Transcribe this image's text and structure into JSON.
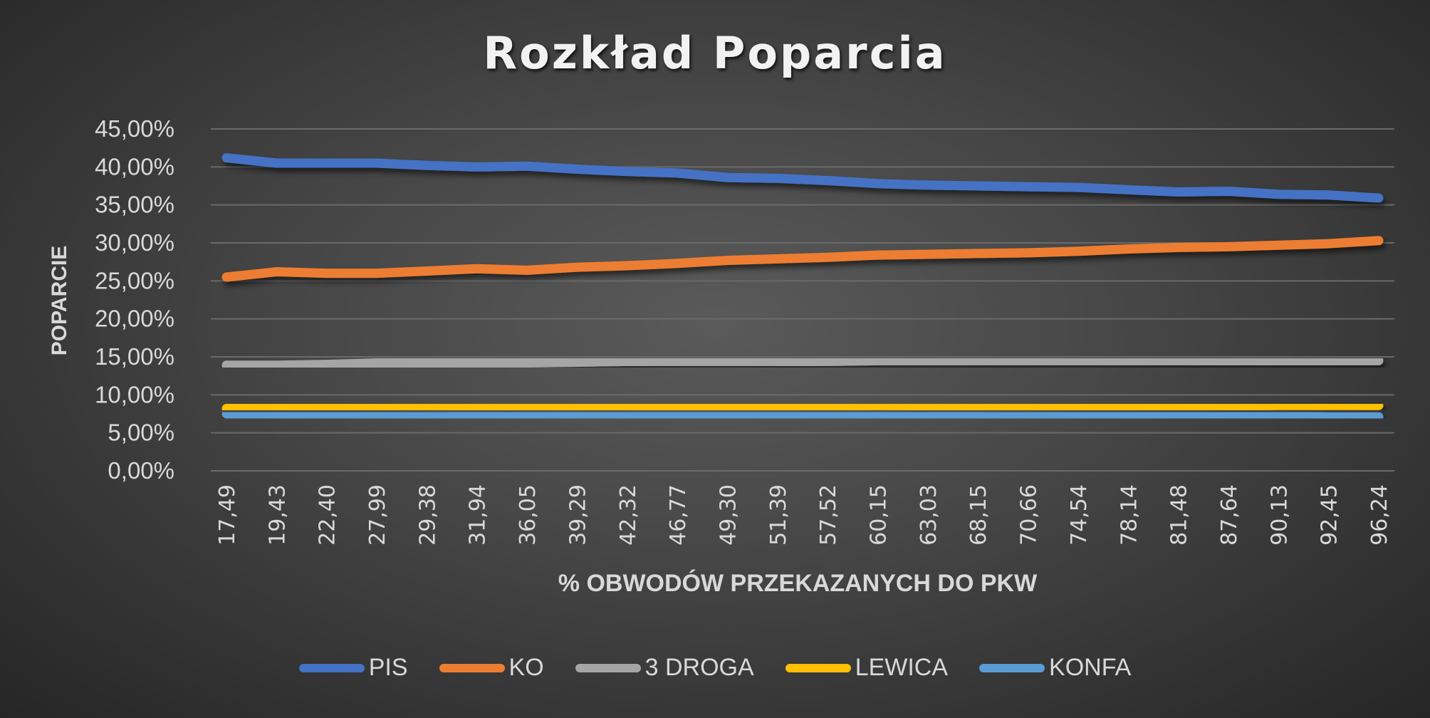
{
  "chart_data": {
    "type": "line",
    "title": "Rozkład Poparcia",
    "xlabel": "% OBWODÓW PRZEKAZANYCH DO PKW",
    "ylabel": "POPARCIE",
    "ylim": [
      0,
      45
    ],
    "yticks": [
      "0,00%",
      "5,00%",
      "10,00%",
      "15,00%",
      "20,00%",
      "25,00%",
      "30,00%",
      "35,00%",
      "40,00%",
      "45,00%"
    ],
    "grid": true,
    "legend_position": "bottom",
    "categories": [
      "17,49",
      "19,43",
      "22,40",
      "27,99",
      "29,38",
      "31,94",
      "36,05",
      "39,29",
      "42,32",
      "46,77",
      "49,30",
      "51,39",
      "57,52",
      "60,15",
      "63,03",
      "68,15",
      "70,66",
      "74,54",
      "78,14",
      "81,48",
      "87,64",
      "90,13",
      "92,45",
      "96,24"
    ],
    "series": [
      {
        "name": "PIS",
        "color": "#4472c4",
        "values": [
          41.2,
          40.5,
          40.5,
          40.5,
          40.2,
          40.0,
          40.1,
          39.7,
          39.4,
          39.2,
          38.6,
          38.5,
          38.2,
          37.8,
          37.6,
          37.5,
          37.4,
          37.3,
          37.0,
          36.7,
          36.8,
          36.4,
          36.3,
          35.9
        ]
      },
      {
        "name": "KO",
        "color": "#ed7d31",
        "values": [
          25.5,
          26.2,
          26.0,
          26.0,
          26.3,
          26.6,
          26.4,
          26.8,
          27.0,
          27.3,
          27.7,
          27.9,
          28.1,
          28.4,
          28.5,
          28.6,
          28.7,
          28.9,
          29.2,
          29.4,
          29.5,
          29.7,
          29.9,
          30.3
        ]
      },
      {
        "name": "3 DROGA",
        "color": "#a5a5a5",
        "values": [
          13.9,
          13.9,
          14.0,
          14.2,
          14.2,
          14.2,
          14.2,
          14.3,
          14.4,
          14.4,
          14.4,
          14.4,
          14.4,
          14.5,
          14.5,
          14.5,
          14.5,
          14.5,
          14.5,
          14.5,
          14.5,
          14.5,
          14.5,
          14.5
        ]
      },
      {
        "name": "LEWICA",
        "color": "#ffc000",
        "values": [
          8.2,
          8.3,
          8.3,
          8.4,
          8.4,
          8.4,
          8.4,
          8.4,
          8.4,
          8.5,
          8.5,
          8.5,
          8.5,
          8.6,
          8.5,
          8.5,
          8.5,
          8.5,
          8.5,
          8.5,
          8.5,
          8.6,
          8.6,
          8.6
        ]
      },
      {
        "name": "KONFA",
        "color": "#5b9bd5",
        "values": [
          7.5,
          7.4,
          7.4,
          7.4,
          7.3,
          7.3,
          7.3,
          7.2,
          7.3,
          7.3,
          7.3,
          7.3,
          7.3,
          7.3,
          7.2,
          7.3,
          7.2,
          7.2,
          7.2,
          7.2,
          7.2,
          7.2,
          7.1,
          7.1
        ]
      }
    ]
  }
}
